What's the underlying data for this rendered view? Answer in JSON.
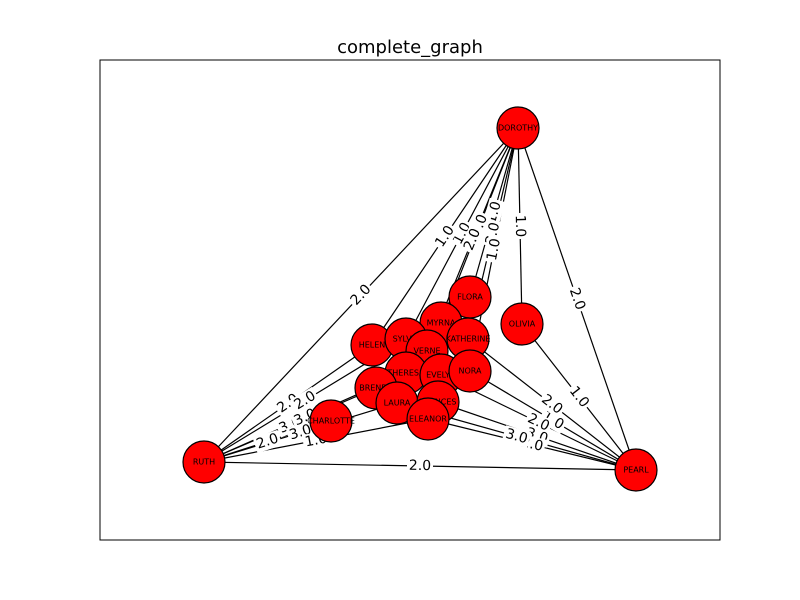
{
  "title": "complete_graph",
  "node_color": "#ff0000",
  "nodes": [
    "DOROTHY",
    "RUTH",
    "PEARL",
    "FLORA",
    "OLIVIA",
    "MYRNA",
    "KATHERINE",
    "HELEN",
    "SYLVIA",
    "VERNE",
    "THERESA",
    "EVELYN",
    "NORA",
    "BRENDA",
    "LAURA",
    "FRANCES",
    "CHARLOTTE",
    "ELEANOR"
  ],
  "edges": [
    {
      "source": "RUTH",
      "target": "PEARL",
      "weight": "2.0"
    },
    {
      "source": "RUTH",
      "target": "DOROTHY",
      "weight": "2.0"
    },
    {
      "source": "DOROTHY",
      "target": "PEARL",
      "weight": "2.0"
    },
    {
      "source": "DOROTHY",
      "target": "OLIVIA",
      "weight": "1.0"
    },
    {
      "source": "DOROTHY",
      "target": "FLORA",
      "weight": "1.0"
    },
    {
      "source": "DOROTHY",
      "target": "MYRNA",
      "weight": "2.0"
    },
    {
      "source": "DOROTHY",
      "target": "KATHERINE",
      "weight": "2.0"
    },
    {
      "source": "DOROTHY",
      "target": "SYLVIA",
      "weight": "1.0"
    },
    {
      "source": "DOROTHY",
      "target": "HELEN",
      "weight": "1.0"
    },
    {
      "source": "DOROTHY",
      "target": "VERNE",
      "weight": "2.0"
    },
    {
      "source": "DOROTHY",
      "target": "NORA",
      "weight": "1.0"
    },
    {
      "source": "PEARL",
      "target": "OLIVIA",
      "weight": "1.0"
    },
    {
      "source": "PEARL",
      "target": "NORA",
      "weight": "1.0"
    },
    {
      "source": "PEARL",
      "target": "KATHERINE",
      "weight": "2.0"
    },
    {
      "source": "PEARL",
      "target": "EVELYN",
      "weight": "2.0"
    },
    {
      "source": "PEARL",
      "target": "FRANCES",
      "weight": "3.0"
    },
    {
      "source": "PEARL",
      "target": "ELEANOR",
      "weight": "2.0"
    },
    {
      "source": "PEARL",
      "target": "LAURA",
      "weight": "3.0"
    },
    {
      "source": "RUTH",
      "target": "CHARLOTTE",
      "weight": "2.0"
    },
    {
      "source": "RUTH",
      "target": "HELEN",
      "weight": "2.0"
    },
    {
      "source": "RUTH",
      "target": "BRENDA",
      "weight": "3.0"
    },
    {
      "source": "RUTH",
      "target": "THERESA",
      "weight": "3.0"
    },
    {
      "source": "RUTH",
      "target": "LAURA",
      "weight": "3.0"
    },
    {
      "source": "RUTH",
      "target": "SYLVIA",
      "weight": "2.0"
    },
    {
      "source": "RUTH",
      "target": "ELEANOR",
      "weight": "1.0"
    }
  ]
}
